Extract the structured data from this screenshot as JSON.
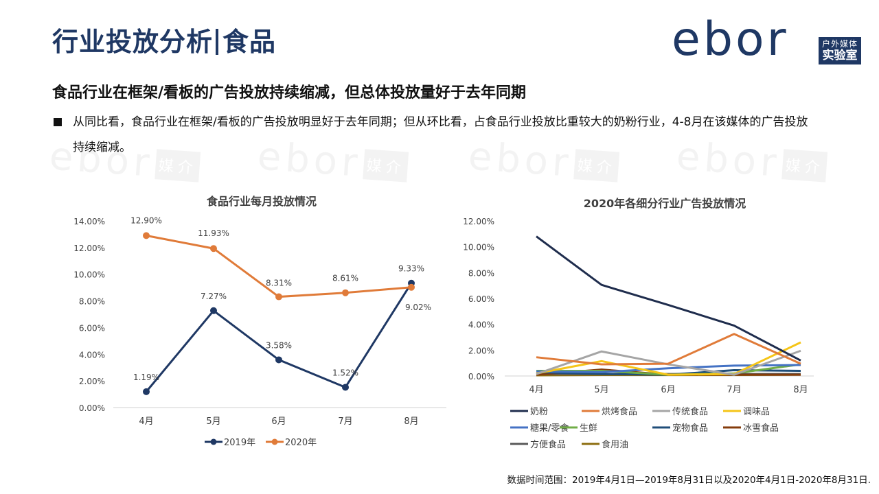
{
  "header": {
    "title_left": "行业投放分析",
    "title_right": "食品",
    "logo_text": "ebor",
    "logo_box_line1": "户外媒体",
    "logo_box_line2": "实验室",
    "watermark_text": "ebor",
    "watermark_tag": "媒介"
  },
  "subtitle": "食品行业在框架/看板的广告投放持续缩减，但总体投放量好于去年同期",
  "bullet": "从同比看，食品行业在框架/看板的广告投放明显好于去年同期；但从环比看，占食品行业投放比重较大的奶粉行业，4-8月在该媒体的广告投放持续缩减。",
  "footnote": "数据时间范围：2019年4月1日—2019年8月31日以及2020年4月1日-2020年8月31日.",
  "chart_data": [
    {
      "type": "line",
      "title": "食品行业每月投放情况",
      "categories": [
        "4月",
        "5月",
        "6月",
        "7月",
        "8月"
      ],
      "ylim": [
        0,
        14
      ],
      "yticks": [
        "0.00%",
        "2.00%",
        "4.00%",
        "6.00%",
        "8.00%",
        "10.00%",
        "12.00%",
        "14.00%"
      ],
      "yunit": "%",
      "grid": false,
      "legend": "bottom",
      "series": [
        {
          "name": "2019年",
          "color": "#1f3864",
          "values": [
            1.19,
            7.27,
            3.58,
            1.52,
            9.33
          ],
          "labels": [
            "1.19%",
            "7.27%",
            "3.58%",
            "1.52%",
            "9.33%"
          ]
        },
        {
          "name": "2020年",
          "color": "#e07b39",
          "values": [
            12.9,
            11.93,
            8.31,
            8.61,
            9.02
          ],
          "labels": [
            "12.90%",
            "11.93%",
            "8.31%",
            "8.61%",
            "9.02%"
          ]
        }
      ]
    },
    {
      "type": "line",
      "title": "2020年各细分行业广告投放情况",
      "categories": [
        "4月",
        "5月",
        "6月",
        "7月",
        "8月"
      ],
      "ylim": [
        0,
        12
      ],
      "yticks": [
        "0.00%",
        "2.00%",
        "4.00%",
        "6.00%",
        "8.00%",
        "10.00%",
        "12.00%"
      ],
      "yunit": "%",
      "grid": false,
      "legend": "bottom",
      "series": [
        {
          "name": "奶粉",
          "color": "#1f2d4d",
          "values": [
            10.8,
            7.05,
            5.5,
            3.9,
            1.2
          ]
        },
        {
          "name": "烘烤食品",
          "color": "#e07b39",
          "values": [
            1.45,
            0.9,
            0.95,
            3.25,
            0.95
          ]
        },
        {
          "name": "传统食品",
          "color": "#a5a5a5",
          "values": [
            0.15,
            1.9,
            0.9,
            0.1,
            1.95
          ]
        },
        {
          "name": "调味品",
          "color": "#f5c518",
          "values": [
            0.2,
            1.15,
            0.1,
            0.15,
            2.6
          ]
        },
        {
          "name": "糖果/零食",
          "color": "#4472c4",
          "values": [
            0.35,
            0.3,
            0.6,
            0.8,
            0.85
          ]
        },
        {
          "name": "生鲜",
          "color": "#70ad47",
          "values": [
            0.4,
            0.4,
            0.1,
            0.2,
            0.9
          ]
        },
        {
          "name": "宠物食品",
          "color": "#1f4e79",
          "values": [
            0.3,
            0.15,
            0.1,
            0.45,
            0.4
          ]
        },
        {
          "name": "冰雪食品",
          "color": "#843c0c",
          "values": [
            0.1,
            0.5,
            0.1,
            0.1,
            0.1
          ]
        },
        {
          "name": "方便食品",
          "color": "#595959",
          "values": [
            0.15,
            0.15,
            0.15,
            0.15,
            0.15
          ]
        },
        {
          "name": "食用油",
          "color": "#8c6d0f",
          "values": [
            0.05,
            0.08,
            0.08,
            0.08,
            0.1
          ]
        }
      ]
    }
  ]
}
